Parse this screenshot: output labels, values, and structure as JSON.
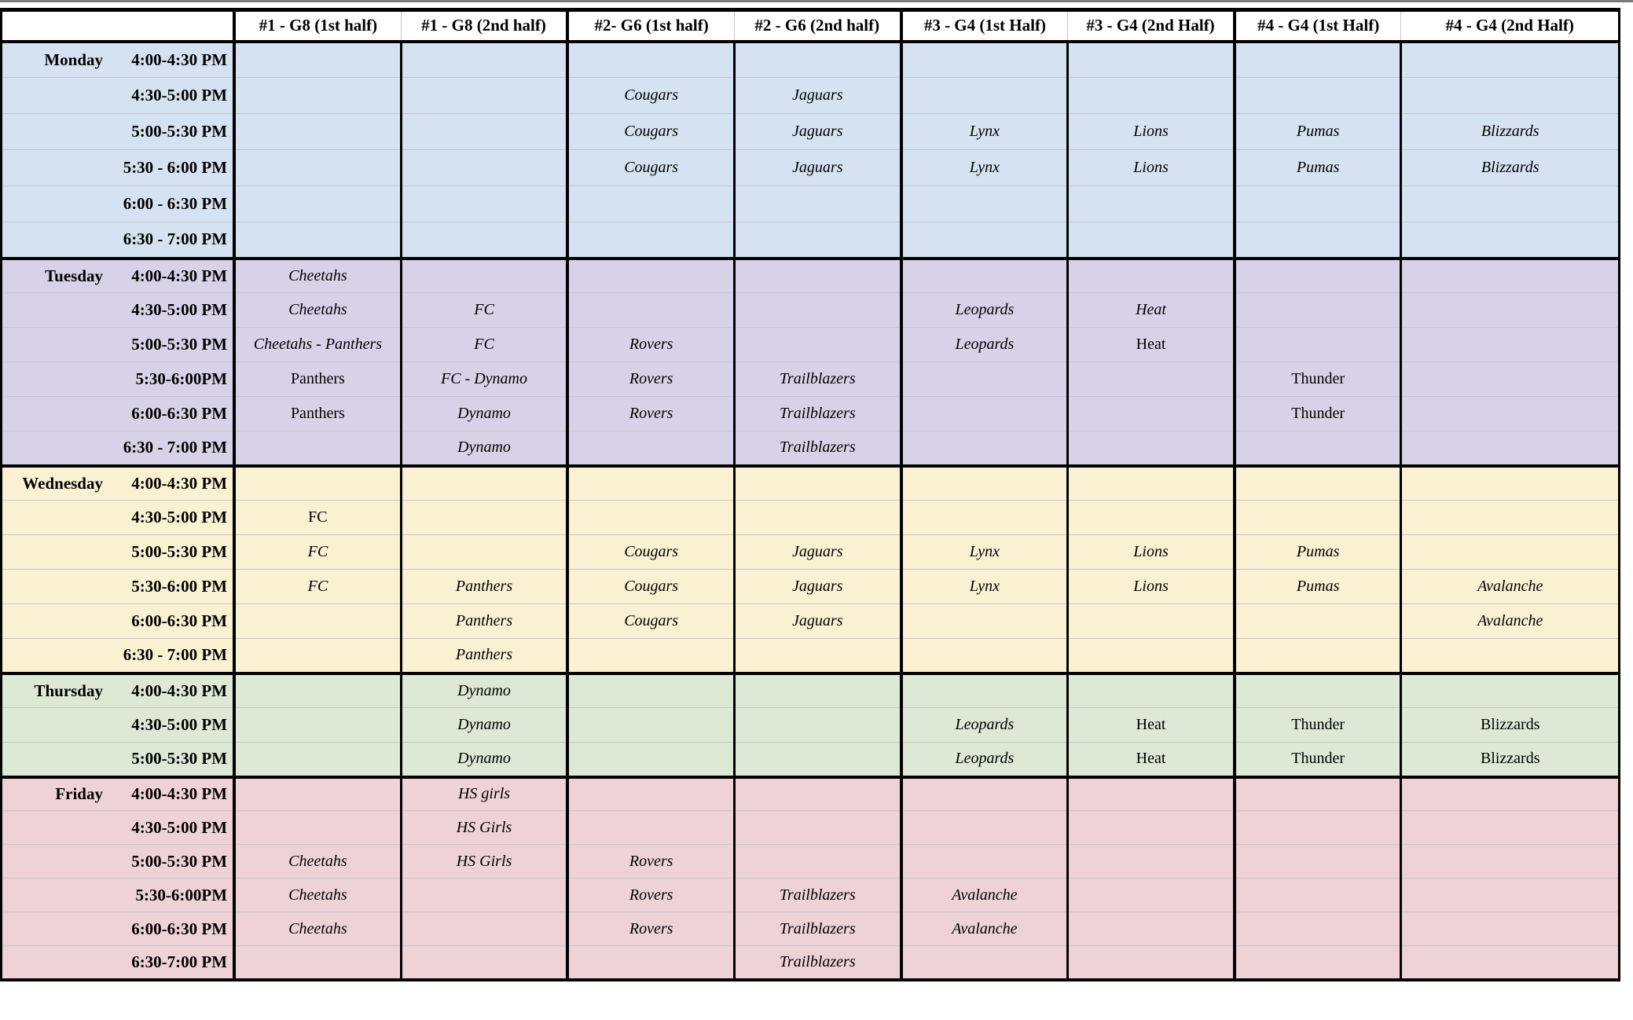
{
  "table": {
    "header_bg": "#ffffff",
    "grid_color": "#000000",
    "columns": [
      {
        "label": "#1 - G8 (1st half)"
      },
      {
        "label": "#1 - G8 (2nd half)"
      },
      {
        "label": "#2- G6 (1st half)"
      },
      {
        "label": "#2 - G6 (2nd half)"
      },
      {
        "label": "#3 - G4 (1st Half)"
      },
      {
        "label": "#3 - G4 (2nd Half)"
      },
      {
        "label": "#4 - G4 (1st Half)"
      },
      {
        "label": "#4 - G4 (2nd Half)"
      }
    ],
    "days": [
      {
        "name": "Monday",
        "color": "#d5e2f1",
        "rows": [
          {
            "time": "4:00-4:30 PM",
            "cells": [
              null,
              null,
              null,
              null,
              null,
              null,
              null,
              null
            ]
          },
          {
            "time": "4:30-5:00 PM",
            "cells": [
              null,
              null,
              {
                "text": "Cougars",
                "italic": true
              },
              {
                "text": "Jaguars",
                "italic": true
              },
              null,
              null,
              null,
              null
            ]
          },
          {
            "time": "5:00-5:30 PM",
            "cells": [
              null,
              null,
              {
                "text": "Cougars",
                "italic": true
              },
              {
                "text": "Jaguars",
                "italic": true
              },
              {
                "text": "Lynx",
                "italic": true
              },
              {
                "text": "Lions",
                "italic": true
              },
              {
                "text": "Pumas",
                "italic": true
              },
              {
                "text": "Blizzards",
                "italic": true
              }
            ]
          },
          {
            "time": "5:30 - 6:00 PM",
            "cells": [
              null,
              null,
              {
                "text": "Cougars",
                "italic": true
              },
              {
                "text": "Jaguars",
                "italic": true
              },
              {
                "text": "Lynx",
                "italic": true
              },
              {
                "text": "Lions",
                "italic": true
              },
              {
                "text": "Pumas",
                "italic": true
              },
              {
                "text": "Blizzards",
                "italic": true
              }
            ]
          },
          {
            "time": "6:00 - 6:30 PM",
            "cells": [
              null,
              null,
              null,
              null,
              null,
              null,
              null,
              null
            ]
          },
          {
            "time": "6:30 - 7:00 PM",
            "cells": [
              null,
              null,
              null,
              null,
              null,
              null,
              null,
              null
            ]
          }
        ]
      },
      {
        "name": "Tuesday",
        "color": "#d8d2e8",
        "rows": [
          {
            "time": "4:00-4:30 PM",
            "cells": [
              {
                "text": "Cheetahs",
                "italic": true
              },
              null,
              null,
              null,
              null,
              null,
              null,
              null
            ]
          },
          {
            "time": "4:30-5:00 PM",
            "cells": [
              {
                "text": "Cheetahs",
                "italic": true
              },
              {
                "text": "FC",
                "italic": true
              },
              null,
              null,
              {
                "text": "Leopards",
                "italic": true
              },
              {
                "text": "Heat",
                "italic": true
              },
              null,
              null
            ]
          },
          {
            "time": "5:00-5:30 PM",
            "cells": [
              {
                "text": "Cheetahs - Panthers",
                "italic": true
              },
              {
                "text": "FC",
                "italic": true
              },
              {
                "text": "Rovers",
                "italic": true
              },
              null,
              {
                "text": "Leopards",
                "italic": true
              },
              {
                "text": "Heat",
                "italic": false
              },
              null,
              null
            ]
          },
          {
            "time": "5:30-6:00PM",
            "cells": [
              {
                "text": "Panthers",
                "italic": false
              },
              {
                "text": "FC - Dynamo",
                "italic": true
              },
              {
                "text": "Rovers",
                "italic": true
              },
              {
                "text": "Trailblazers",
                "italic": true
              },
              null,
              null,
              {
                "text": "Thunder",
                "italic": false
              },
              null
            ]
          },
          {
            "time": "6:00-6:30 PM",
            "cells": [
              {
                "text": "Panthers",
                "italic": false
              },
              {
                "text": "Dynamo",
                "italic": true
              },
              {
                "text": "Rovers",
                "italic": true
              },
              {
                "text": "Trailblazers",
                "italic": true
              },
              null,
              null,
              {
                "text": "Thunder",
                "italic": false
              },
              null
            ]
          },
          {
            "time": "6:30 - 7:00 PM",
            "cells": [
              null,
              {
                "text": "Dynamo",
                "italic": true
              },
              null,
              {
                "text": "Trailblazers",
                "italic": true
              },
              null,
              null,
              null,
              null
            ]
          }
        ]
      },
      {
        "name": "Wednesday",
        "color": "#faf0d2",
        "rows": [
          {
            "time": "4:00-4:30 PM",
            "cells": [
              null,
              null,
              null,
              null,
              null,
              null,
              null,
              null
            ]
          },
          {
            "time": "4:30-5:00 PM",
            "cells": [
              {
                "text": "FC",
                "italic": false
              },
              null,
              null,
              null,
              null,
              null,
              null,
              null
            ]
          },
          {
            "time": "5:00-5:30 PM",
            "cells": [
              {
                "text": "FC",
                "italic": true
              },
              null,
              {
                "text": "Cougars",
                "italic": true
              },
              {
                "text": "Jaguars",
                "italic": true
              },
              {
                "text": "Lynx",
                "italic": true
              },
              {
                "text": "Lions",
                "italic": true
              },
              {
                "text": "Pumas",
                "italic": true
              },
              null
            ]
          },
          {
            "time": "5:30-6:00 PM",
            "cells": [
              {
                "text": "FC",
                "italic": true
              },
              {
                "text": "Panthers",
                "italic": true
              },
              {
                "text": "Cougars",
                "italic": true
              },
              {
                "text": "Jaguars",
                "italic": true
              },
              {
                "text": "Lynx",
                "italic": true
              },
              {
                "text": "Lions",
                "italic": true
              },
              {
                "text": "Pumas",
                "italic": true
              },
              {
                "text": "Avalanche",
                "italic": true
              }
            ]
          },
          {
            "time": "6:00-6:30 PM",
            "cells": [
              null,
              {
                "text": "Panthers",
                "italic": true
              },
              {
                "text": "Cougars",
                "italic": true
              },
              {
                "text": "Jaguars",
                "italic": true
              },
              null,
              null,
              null,
              {
                "text": "Avalanche",
                "italic": true
              }
            ]
          },
          {
            "time": "6:30 - 7:00 PM",
            "cells": [
              null,
              {
                "text": "Panthers",
                "italic": true
              },
              null,
              null,
              null,
              null,
              null,
              null
            ]
          }
        ]
      },
      {
        "name": "Thursday",
        "color": "#dde8d5",
        "rows": [
          {
            "time": "4:00-4:30 PM",
            "cells": [
              null,
              {
                "text": "Dynamo",
                "italic": true
              },
              null,
              null,
              null,
              null,
              null,
              null
            ]
          },
          {
            "time": "4:30-5:00 PM",
            "cells": [
              null,
              {
                "text": "Dynamo",
                "italic": true
              },
              null,
              null,
              {
                "text": "Leopards",
                "italic": true
              },
              {
                "text": "Heat",
                "italic": false
              },
              {
                "text": "Thunder",
                "italic": false
              },
              {
                "text": "Blizzards",
                "italic": false
              }
            ]
          },
          {
            "time": "5:00-5:30 PM",
            "cells": [
              null,
              {
                "text": "Dynamo",
                "italic": true
              },
              null,
              null,
              {
                "text": "Leopards",
                "italic": true
              },
              {
                "text": "Heat",
                "italic": false
              },
              {
                "text": "Thunder",
                "italic": false
              },
              {
                "text": "Blizzards",
                "italic": false
              }
            ]
          }
        ]
      },
      {
        "name": "Friday",
        "color": "#eed2d6",
        "rows": [
          {
            "time": "4:00-4:30 PM",
            "cells": [
              null,
              {
                "text": "HS girls",
                "italic": true
              },
              null,
              null,
              null,
              null,
              null,
              null
            ]
          },
          {
            "time": "4:30-5:00 PM",
            "cells": [
              null,
              {
                "text": "HS Girls",
                "italic": true
              },
              null,
              null,
              null,
              null,
              null,
              null
            ]
          },
          {
            "time": "5:00-5:30 PM",
            "cells": [
              {
                "text": "Cheetahs",
                "italic": true
              },
              {
                "text": "HS Girls",
                "italic": true
              },
              {
                "text": "Rovers",
                "italic": true
              },
              null,
              null,
              null,
              null,
              null
            ]
          },
          {
            "time": "5:30-6:00PM",
            "cells": [
              {
                "text": "Cheetahs",
                "italic": true
              },
              null,
              {
                "text": "Rovers",
                "italic": true
              },
              {
                "text": "Trailblazers",
                "italic": true
              },
              {
                "text": "Avalanche",
                "italic": true
              },
              null,
              null,
              null
            ]
          },
          {
            "time": "6:00-6:30 PM",
            "cells": [
              {
                "text": "Cheetahs",
                "italic": true
              },
              null,
              {
                "text": "Rovers",
                "italic": true
              },
              {
                "text": "Trailblazers",
                "italic": true
              },
              {
                "text": "Avalanche",
                "italic": true
              },
              null,
              null,
              null
            ]
          },
          {
            "time": "6:30-7:00 PM",
            "cells": [
              null,
              null,
              null,
              {
                "text": "Trailblazers",
                "italic": true
              },
              null,
              null,
              null,
              null
            ]
          }
        ]
      }
    ]
  }
}
